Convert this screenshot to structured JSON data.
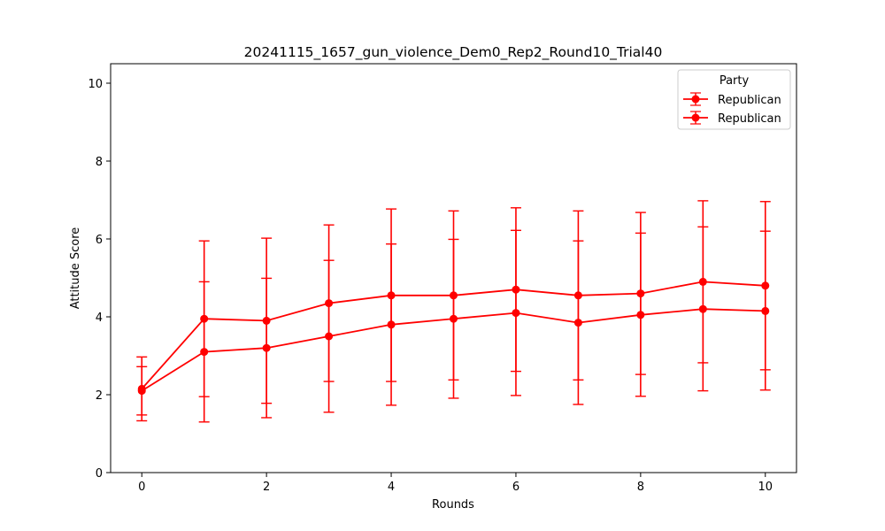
{
  "chart_data": {
    "type": "line",
    "title": "20241115_1657_gun_violence_Dem0_Rep2_Round10_Trial40",
    "xlabel": "Rounds",
    "ylabel": "Attitude Score",
    "xlim": [
      -0.5,
      10.5
    ],
    "ylim": [
      0,
      10.5
    ],
    "xticks": [
      0,
      2,
      4,
      6,
      8,
      10
    ],
    "yticks": [
      0,
      2,
      4,
      6,
      8,
      10
    ],
    "grid": false,
    "legend": {
      "title": "Party",
      "placement": "top-right"
    },
    "x": [
      0,
      1,
      2,
      3,
      4,
      5,
      6,
      7,
      8,
      9,
      10
    ],
    "series": [
      {
        "name": "Republican",
        "color": "#ff0000",
        "values": [
          2.15,
          3.95,
          3.9,
          4.35,
          4.55,
          4.55,
          4.7,
          4.55,
          4.6,
          4.9,
          4.8
        ],
        "err_low": [
          1.33,
          1.95,
          1.78,
          2.34,
          2.34,
          2.38,
          2.6,
          2.38,
          2.52,
          2.82,
          2.64
        ],
        "err_high": [
          2.97,
          5.95,
          6.02,
          6.36,
          6.77,
          6.72,
          6.8,
          6.72,
          6.68,
          6.98,
          6.96
        ]
      },
      {
        "name": "Republican",
        "color": "#ff0000",
        "values": [
          2.1,
          3.1,
          3.2,
          3.5,
          3.8,
          3.95,
          4.1,
          3.85,
          4.05,
          4.2,
          4.15
        ],
        "err_low": [
          1.48,
          1.3,
          1.41,
          1.55,
          1.73,
          1.91,
          1.98,
          1.75,
          1.96,
          2.1,
          2.12
        ],
        "err_high": [
          2.72,
          4.9,
          4.99,
          5.45,
          5.87,
          5.99,
          6.22,
          5.95,
          6.15,
          6.31,
          6.2
        ]
      }
    ]
  }
}
